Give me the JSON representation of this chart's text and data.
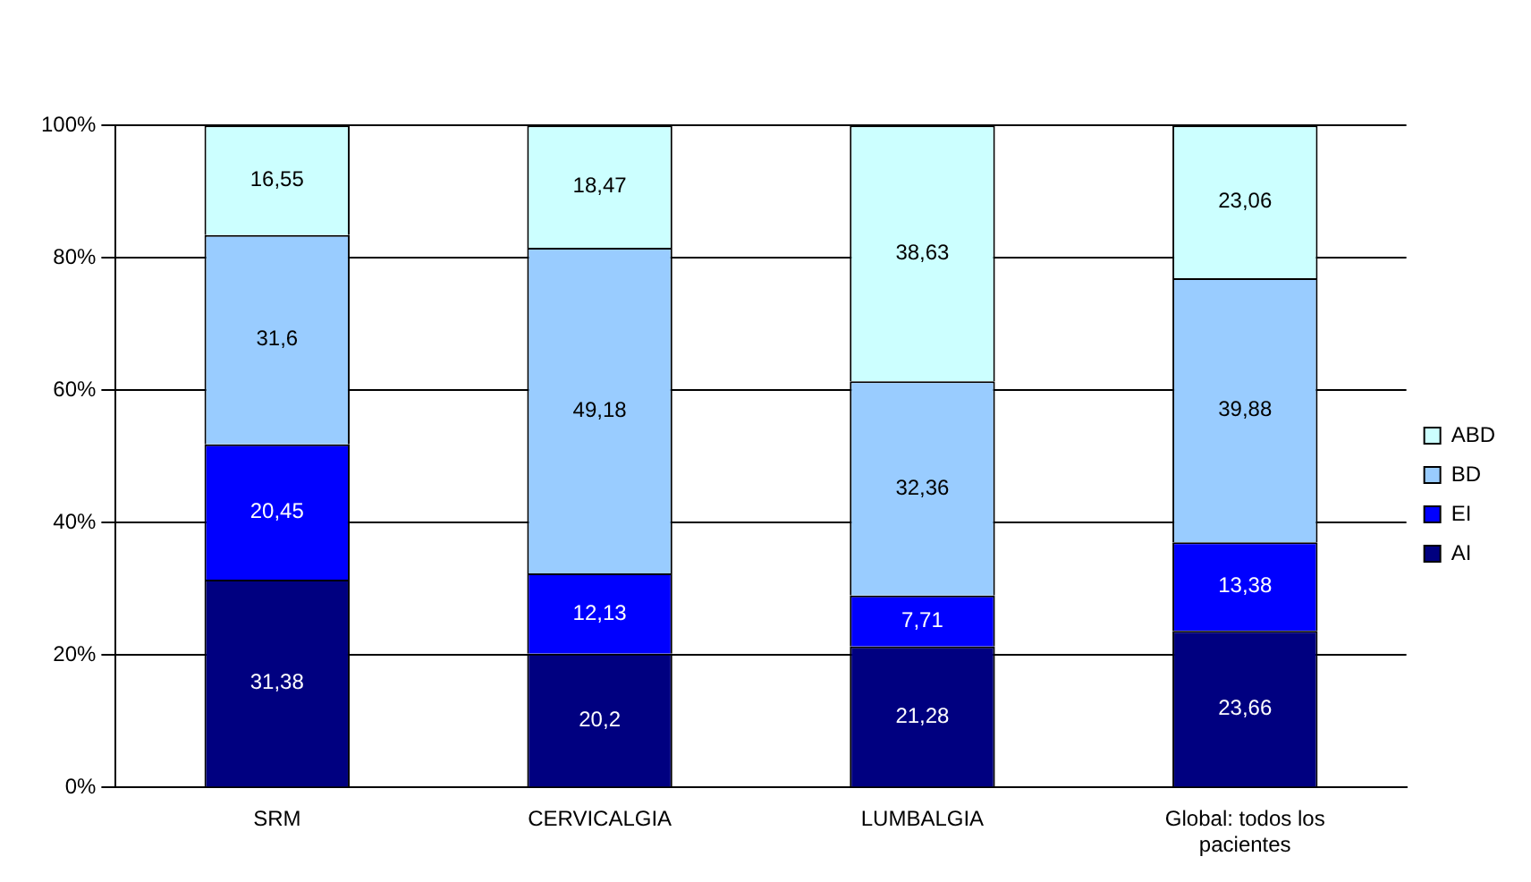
{
  "chart_data": {
    "type": "bar",
    "stacked": true,
    "categories": [
      "SRM",
      "CERVICALGIA",
      "LUMBALGIA",
      "Global: todos los pacientes"
    ],
    "series": [
      {
        "name": "AI",
        "color": "#000080",
        "values": [
          31.38,
          20.2,
          21.28,
          23.66
        ],
        "value_labels": [
          "31,38",
          "20,2",
          "21,28",
          "23,66"
        ]
      },
      {
        "name": "EI",
        "color": "#0000ff",
        "values": [
          20.45,
          12.13,
          7.71,
          13.38
        ],
        "value_labels": [
          "20,45",
          "12,13",
          "7,71",
          "13,38"
        ]
      },
      {
        "name": "BD",
        "color": "#99ccff",
        "values": [
          31.6,
          49.18,
          32.36,
          39.88
        ],
        "value_labels": [
          "31,6",
          "49,18",
          "32,36",
          "39,88"
        ]
      },
      {
        "name": "ABD",
        "color": "#ccffff",
        "values": [
          16.55,
          18.47,
          38.63,
          23.06
        ],
        "value_labels": [
          "16,55",
          "18,47",
          "38,63",
          "23,06"
        ]
      }
    ],
    "ylim": [
      0,
      100
    ],
    "yticks": [
      {
        "value": 0,
        "label": "0%"
      },
      {
        "value": 20,
        "label": "20%"
      },
      {
        "value": 40,
        "label": "40%"
      },
      {
        "value": 60,
        "label": "60%"
      },
      {
        "value": 80,
        "label": "80%"
      },
      {
        "value": 100,
        "label": "100%"
      }
    ],
    "grid": "y",
    "legend": "right"
  }
}
